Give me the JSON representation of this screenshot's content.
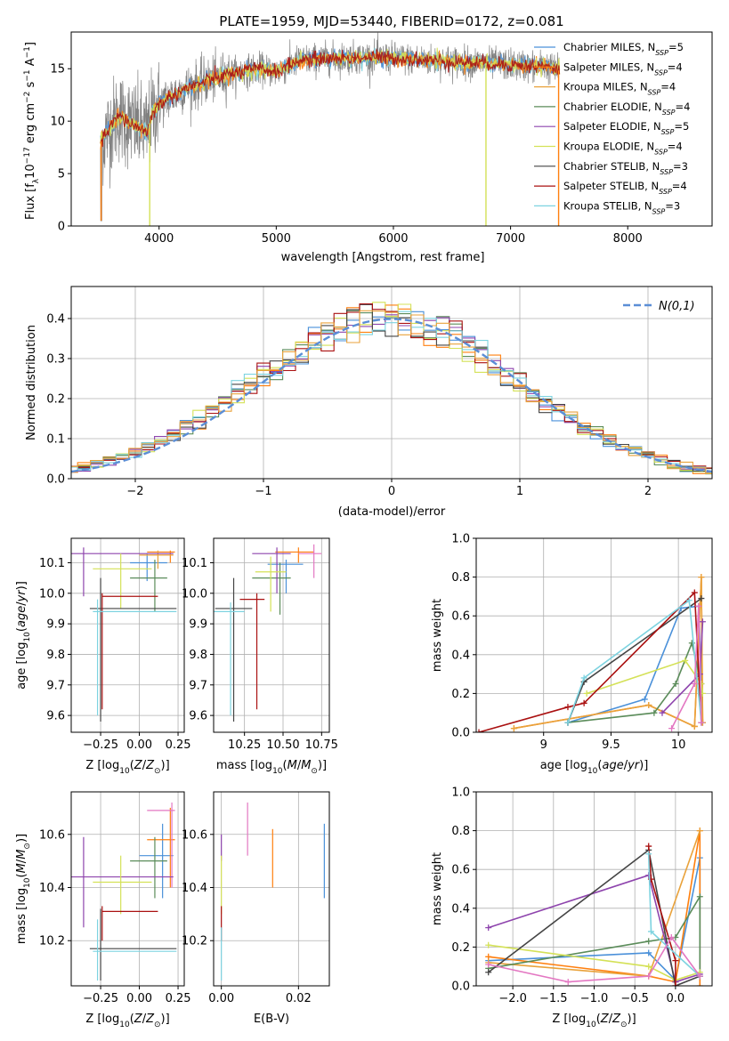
{
  "title": "PLATE=1959, MJD=53440, FIBERID=0172, z=0.081",
  "colors": {
    "cm": "#4a90d9",
    "sm": "#ff7f0e",
    "km": "#e9a23b",
    "ce": "#5b8c5a",
    "se": "#8e44ad",
    "ke": "#d4e157",
    "cs": "#444444",
    "ss": "#aa1111",
    "ks": "#7dd3e0",
    "pk": "#e377c2",
    "data": "#808080",
    "gauss": "#5b8ed6"
  },
  "chart_data": [
    {
      "id": "spectrum",
      "type": "line",
      "xlabel": "wavelength [Angstrom, rest frame]",
      "ylabel": "Flux [f_λ10^-17 erg cm^-2 s^-1 A^-1]",
      "xlim": [
        3250,
        8720
      ],
      "ylim": [
        0,
        18.5
      ],
      "xticks": [
        4000,
        5000,
        6000,
        7000,
        8000
      ],
      "yticks": [
        0,
        5,
        10,
        15
      ],
      "legend_position": "upper right",
      "legend": [
        {
          "name": "Chabrier MILES",
          "n": 5,
          "color": "cm"
        },
        {
          "name": "Salpeter MILES",
          "n": 4,
          "color": "sm"
        },
        {
          "name": "Kroupa MILES",
          "n": 4,
          "color": "km"
        },
        {
          "name": "Chabrier ELODIE",
          "n": 4,
          "color": "ce"
        },
        {
          "name": "Salpeter ELODIE",
          "n": 5,
          "color": "se"
        },
        {
          "name": "Kroupa ELODIE",
          "n": 4,
          "color": "ke"
        },
        {
          "name": "Chabrier STELIB",
          "n": 3,
          "color": "cs"
        },
        {
          "name": "Salpeter STELIB",
          "n": 4,
          "color": "ss"
        },
        {
          "name": "Kroupa STELIB",
          "n": 3,
          "color": "ks"
        }
      ],
      "continuum": [
        [
          3500,
          8
        ],
        [
          3650,
          10.5
        ],
        [
          3800,
          9.5
        ],
        [
          3900,
          9
        ],
        [
          3950,
          11
        ],
        [
          4050,
          12
        ],
        [
          4200,
          13
        ],
        [
          4400,
          13.8
        ],
        [
          4600,
          14.5
        ],
        [
          4850,
          15
        ],
        [
          5000,
          14.7
        ],
        [
          5200,
          15.8
        ],
        [
          5500,
          16
        ],
        [
          5800,
          16.1
        ],
        [
          6000,
          16
        ],
        [
          6300,
          15.8
        ],
        [
          6500,
          15.7
        ],
        [
          6800,
          15.5
        ],
        [
          7100,
          15.3
        ],
        [
          7300,
          15.2
        ],
        [
          7420,
          14.8
        ]
      ],
      "dips": [
        [
          3505,
          0.5
        ],
        [
          3920,
          0
        ],
        [
          6790,
          0
        ],
        [
          7410,
          0
        ]
      ]
    },
    {
      "id": "residuals",
      "type": "step",
      "xlabel": "(data-model)/error",
      "ylabel": "Normed distribution",
      "xlim": [
        -2.5,
        2.5
      ],
      "ylim": [
        0,
        0.48
      ],
      "xticks": [
        -2,
        -1,
        0,
        1,
        2
      ],
      "yticks": [
        0.0,
        0.1,
        0.2,
        0.3,
        0.4
      ],
      "gauss_label": "N(0,1)",
      "bin_width": 0.1
    },
    {
      "id": "age_vs_Z",
      "type": "errorbar",
      "xlabel": "Z [log10(Z/Z⊙)]",
      "ylabel": "age [log10(age/yr)]",
      "xlim": [
        -0.44,
        0.29
      ],
      "ylim": [
        9.545,
        10.18
      ],
      "xticks": [
        -0.25,
        0.0,
        0.25
      ],
      "xticklabels": [
        "−0.25",
        "0.00",
        "0.25"
      ],
      "yticks": [
        9.6,
        9.7,
        9.8,
        9.9,
        10.0,
        10.1
      ],
      "points": [
        {
          "c": "cm",
          "x": 0.05,
          "xl": -0.06,
          "xh": 0.18,
          "y": 10.1,
          "yl": 10.04,
          "yh": 10.13
        },
        {
          "c": "sm",
          "x": 0.2,
          "xl": 0.05,
          "xh": 0.23,
          "y": 10.135,
          "yl": 10.1,
          "yh": 10.14
        },
        {
          "c": "km",
          "x": 0.12,
          "xl": 0.0,
          "xh": 0.22,
          "y": 10.125,
          "yl": 10.08,
          "yh": 10.14
        },
        {
          "c": "ce",
          "x": 0.1,
          "xl": -0.06,
          "xh": 0.18,
          "y": 10.05,
          "yl": 9.94,
          "yh": 10.11
        },
        {
          "c": "se",
          "x": -0.36,
          "xl": -0.6,
          "xh": 0.22,
          "y": 10.13,
          "yl": 9.99,
          "yh": 10.15
        },
        {
          "c": "ke",
          "x": -0.12,
          "xl": -0.3,
          "xh": 0.08,
          "y": 10.08,
          "yl": 9.95,
          "yh": 10.13
        },
        {
          "c": "cs",
          "x": -0.25,
          "xl": -0.32,
          "xh": 0.24,
          "y": 9.95,
          "yl": 9.58,
          "yh": 10.05
        },
        {
          "c": "ss",
          "x": -0.24,
          "xl": -0.24,
          "xh": 0.12,
          "y": 9.99,
          "yl": 9.62,
          "yh": 10.0
        },
        {
          "c": "ks",
          "x": -0.27,
          "xl": -0.3,
          "xh": 0.24,
          "y": 9.94,
          "yl": 9.6,
          "yh": 9.98
        }
      ]
    },
    {
      "id": "age_vs_mass",
      "type": "errorbar",
      "xlabel": "mass [log10(M/M⊙)]",
      "ylabel": "",
      "xlim": [
        10.05,
        10.8
      ],
      "ylim": [
        9.545,
        10.18
      ],
      "xticks": [
        10.25,
        10.5,
        10.75
      ],
      "xticklabels": [
        "10.25",
        "10.50",
        "10.75"
      ],
      "yticks": [
        9.6,
        9.7,
        9.8,
        9.9,
        10.0,
        10.1
      ],
      "points": [
        {
          "c": "cm",
          "x": 10.52,
          "xl": 10.4,
          "xh": 10.63,
          "y": 10.095,
          "yl": 10.0,
          "yh": 10.11
        },
        {
          "c": "sm",
          "x": 10.6,
          "xl": 10.45,
          "xh": 10.7,
          "y": 10.135,
          "yl": 10.1,
          "yh": 10.15
        },
        {
          "c": "pk",
          "x": 10.7,
          "xl": 10.6,
          "xh": 10.75,
          "y": 10.13,
          "yl": 10.05,
          "yh": 10.16
        },
        {
          "c": "ce",
          "x": 10.48,
          "xl": 10.3,
          "xh": 10.55,
          "y": 10.05,
          "yl": 9.93,
          "yh": 10.1
        },
        {
          "c": "se",
          "x": 10.46,
          "xl": 10.3,
          "xh": 10.55,
          "y": 10.13,
          "yl": 10.0,
          "yh": 10.15
        },
        {
          "c": "ke",
          "x": 10.42,
          "xl": 10.32,
          "xh": 10.52,
          "y": 10.07,
          "yl": 9.94,
          "yh": 10.12
        },
        {
          "c": "cs",
          "x": 10.18,
          "xl": 10.06,
          "xh": 10.3,
          "y": 9.95,
          "yl": 9.58,
          "yh": 10.05
        },
        {
          "c": "ss",
          "x": 10.33,
          "xl": 10.22,
          "xh": 10.38,
          "y": 9.98,
          "yl": 9.62,
          "yh": 10.0
        },
        {
          "c": "ks",
          "x": 10.16,
          "xl": 10.05,
          "xh": 10.25,
          "y": 9.94,
          "yl": 9.6,
          "yh": 9.97
        }
      ]
    },
    {
      "id": "weight_vs_age",
      "type": "line",
      "xlabel": "age [log10(age/yr)]",
      "ylabel": "mass weight",
      "xlim": [
        8.5,
        10.25
      ],
      "ylim": [
        0,
        1.0
      ],
      "xticks": [
        9.0,
        9.5,
        10.0
      ],
      "yticks": [
        0.0,
        0.2,
        0.4,
        0.6,
        0.8,
        1.0
      ],
      "series": [
        {
          "c": "cm",
          "pts": [
            [
              9.18,
              0.05
            ],
            [
              9.75,
              0.17
            ],
            [
              10.02,
              0.64
            ],
            [
              10.15,
              0.65
            ],
            [
              10.18,
              0.05
            ]
          ]
        },
        {
          "c": "sm",
          "pts": [
            [
              8.78,
              0.02
            ],
            [
              9.78,
              0.14
            ],
            [
              10.12,
              0.03
            ],
            [
              10.17,
              0.8
            ],
            [
              10.18,
              0.05
            ]
          ]
        },
        {
          "c": "km",
          "pts": [
            [
              8.78,
              0.02
            ],
            [
              9.78,
              0.14
            ],
            [
              10.12,
              0.03
            ],
            [
              10.17,
              0.8
            ],
            [
              10.18,
              0.05
            ]
          ]
        },
        {
          "c": "ce",
          "pts": [
            [
              9.18,
              0.05
            ],
            [
              9.82,
              0.1
            ],
            [
              9.98,
              0.25
            ],
            [
              10.1,
              0.46
            ],
            [
              10.17,
              0.25
            ]
          ]
        },
        {
          "c": "se",
          "pts": [
            [
              9.88,
              0.1
            ],
            [
              10.16,
              0.3
            ],
            [
              10.18,
              0.57
            ]
          ]
        },
        {
          "c": "ke",
          "pts": [
            [
              9.32,
              0.2
            ],
            [
              10.05,
              0.37
            ],
            [
              10.17,
              0.25
            ],
            [
              10.18,
              0.2
            ]
          ]
        },
        {
          "c": "cs",
          "pts": [
            [
              9.18,
              0.05
            ],
            [
              9.3,
              0.26
            ],
            [
              10.17,
              0.69
            ]
          ]
        },
        {
          "c": "ss",
          "pts": [
            [
              8.52,
              0.0
            ],
            [
              9.18,
              0.13
            ],
            [
              9.3,
              0.15
            ],
            [
              10.12,
              0.72
            ],
            [
              10.17,
              0.05
            ]
          ]
        },
        {
          "c": "ks",
          "pts": [
            [
              9.18,
              0.05
            ],
            [
              9.3,
              0.28
            ],
            [
              10.08,
              0.68
            ],
            [
              10.17,
              0.05
            ]
          ]
        },
        {
          "c": "pk",
          "pts": [
            [
              9.95,
              0.02
            ],
            [
              10.12,
              0.25
            ],
            [
              10.15,
              0.65
            ],
            [
              10.17,
              0.05
            ]
          ]
        }
      ]
    },
    {
      "id": "mass_vs_Z",
      "type": "errorbar",
      "xlabel": "Z [log10(Z/Z⊙)]",
      "ylabel": "mass [log10(M/M⊙)]",
      "xlim": [
        -0.44,
        0.29
      ],
      "ylim": [
        10.03,
        10.76
      ],
      "xticks": [
        -0.25,
        0.0,
        0.25
      ],
      "xticklabels": [
        "−0.25",
        "0.00",
        "0.25"
      ],
      "yticks": [
        10.2,
        10.4,
        10.6
      ],
      "points": [
        {
          "c": "cm",
          "x": 0.15,
          "xl": 0.0,
          "xh": 0.22,
          "y": 10.52,
          "yl": 10.36,
          "yh": 10.64
        },
        {
          "c": "sm",
          "x": 0.2,
          "xl": 0.05,
          "xh": 0.23,
          "y": 10.58,
          "yl": 10.4,
          "yh": 10.7
        },
        {
          "c": "pk",
          "x": 0.21,
          "xl": 0.05,
          "xh": 0.23,
          "y": 10.69,
          "yl": 10.4,
          "yh": 10.72
        },
        {
          "c": "ce",
          "x": 0.1,
          "xl": -0.06,
          "xh": 0.18,
          "y": 10.5,
          "yl": 10.36,
          "yh": 10.59
        },
        {
          "c": "se",
          "x": -0.36,
          "xl": -0.6,
          "xh": 0.22,
          "y": 10.44,
          "yl": 10.25,
          "yh": 10.59
        },
        {
          "c": "ke",
          "x": -0.12,
          "xl": -0.3,
          "xh": 0.08,
          "y": 10.42,
          "yl": 10.3,
          "yh": 10.52
        },
        {
          "c": "cs",
          "x": -0.25,
          "xl": -0.32,
          "xh": 0.24,
          "y": 10.17,
          "yl": 10.05,
          "yh": 10.32
        },
        {
          "c": "ss",
          "x": -0.24,
          "xl": -0.24,
          "xh": 0.12,
          "y": 10.31,
          "yl": 10.2,
          "yh": 10.33
        },
        {
          "c": "ks",
          "x": -0.27,
          "xl": -0.3,
          "xh": 0.24,
          "y": 10.16,
          "yl": 10.05,
          "yh": 10.28
        }
      ]
    },
    {
      "id": "mass_vs_ebv",
      "type": "errorbar",
      "xlabel": "E(B-V)",
      "ylabel": "",
      "xlim": [
        -0.002,
        0.028
      ],
      "ylim": [
        10.03,
        10.76
      ],
      "xticks": [
        0.0,
        0.02
      ],
      "xticklabels": [
        "0.00",
        "0.02"
      ],
      "yticks": [
        10.2,
        10.4,
        10.6
      ],
      "points": [
        {
          "c": "cm",
          "x": 0.0267,
          "y": 10.5,
          "yl": 10.36,
          "yh": 10.64
        },
        {
          "c": "sm",
          "x": 0.0133,
          "y": 10.48,
          "yl": 10.4,
          "yh": 10.62
        },
        {
          "c": "pk",
          "x": 0.0068,
          "y": 10.62,
          "yl": 10.52,
          "yh": 10.72
        },
        {
          "c": "se",
          "x": 0.0,
          "y": 10.55,
          "yl": 10.5,
          "yh": 10.6
        },
        {
          "c": "ke",
          "x": 0.0,
          "y": 10.45,
          "yl": 10.3,
          "yh": 10.52
        },
        {
          "c": "ss",
          "x": 0.0,
          "y": 10.3,
          "yl": 10.2,
          "yh": 10.33
        },
        {
          "c": "ks",
          "x": 0.0,
          "y": 10.15,
          "yl": 10.05,
          "yh": 10.25
        }
      ]
    },
    {
      "id": "weight_vs_Z",
      "type": "line",
      "xlabel": "Z [log10(Z/Z⊙)]",
      "ylabel": "mass weight",
      "xlim": [
        -2.45,
        0.45
      ],
      "ylim": [
        0,
        1.0
      ],
      "xticks": [
        -2.0,
        -1.5,
        -1.0,
        -0.5,
        0.0
      ],
      "xticklabels": [
        "−2.0",
        "−1.5",
        "−1.0",
        "−0.5",
        "0.0"
      ],
      "yticks": [
        0.0,
        0.2,
        0.4,
        0.6,
        0.8,
        1.0
      ],
      "series": [
        {
          "c": "cm",
          "pts": [
            [
              -2.3,
              0.13
            ],
            [
              -0.33,
              0.17
            ],
            [
              0.0,
              0.03
            ],
            [
              0.3,
              0.66
            ],
            [
              0.3,
              0.05
            ]
          ]
        },
        {
          "c": "sm",
          "pts": [
            [
              -2.3,
              0.15
            ],
            [
              -0.33,
              0.05
            ],
            [
              0.0,
              0.02
            ],
            [
              0.3,
              0.8
            ],
            [
              0.3,
              0.0
            ]
          ]
        },
        {
          "c": "km",
          "pts": [
            [
              -2.3,
              0.12
            ],
            [
              -0.33,
              0.05
            ],
            [
              0.3,
              0.8
            ]
          ]
        },
        {
          "c": "ce",
          "pts": [
            [
              -2.3,
              0.09
            ],
            [
              -0.33,
              0.23
            ],
            [
              0.0,
              0.25
            ],
            [
              0.3,
              0.46
            ],
            [
              0.3,
              0.05
            ]
          ]
        },
        {
          "c": "se",
          "pts": [
            [
              -2.3,
              0.3
            ],
            [
              -0.33,
              0.57
            ],
            [
              0.0,
              0.02
            ],
            [
              0.3,
              0.06
            ]
          ]
        },
        {
          "c": "ke",
          "pts": [
            [
              -2.3,
              0.21
            ],
            [
              -0.33,
              0.1
            ],
            [
              0.0,
              0.03
            ],
            [
              0.3,
              0.07
            ]
          ]
        },
        {
          "c": "cs",
          "pts": [
            [
              -2.3,
              0.07
            ],
            [
              -0.33,
              0.7
            ],
            [
              0.0,
              0.0
            ],
            [
              0.3,
              0.05
            ]
          ]
        },
        {
          "c": "ss",
          "pts": [
            [
              -0.33,
              0.72
            ],
            [
              -0.3,
              0.55
            ],
            [
              0.0,
              0.13
            ],
            [
              0.0,
              0.0
            ]
          ]
        },
        {
          "c": "ks",
          "pts": [
            [
              -0.33,
              0.68
            ],
            [
              -0.3,
              0.28
            ],
            [
              0.3,
              0.05
            ]
          ]
        },
        {
          "c": "pk",
          "pts": [
            [
              -2.3,
              0.11
            ],
            [
              -1.32,
              0.02
            ],
            [
              -0.33,
              0.05
            ],
            [
              -0.05,
              0.25
            ],
            [
              0.3,
              0.05
            ]
          ]
        }
      ]
    }
  ]
}
